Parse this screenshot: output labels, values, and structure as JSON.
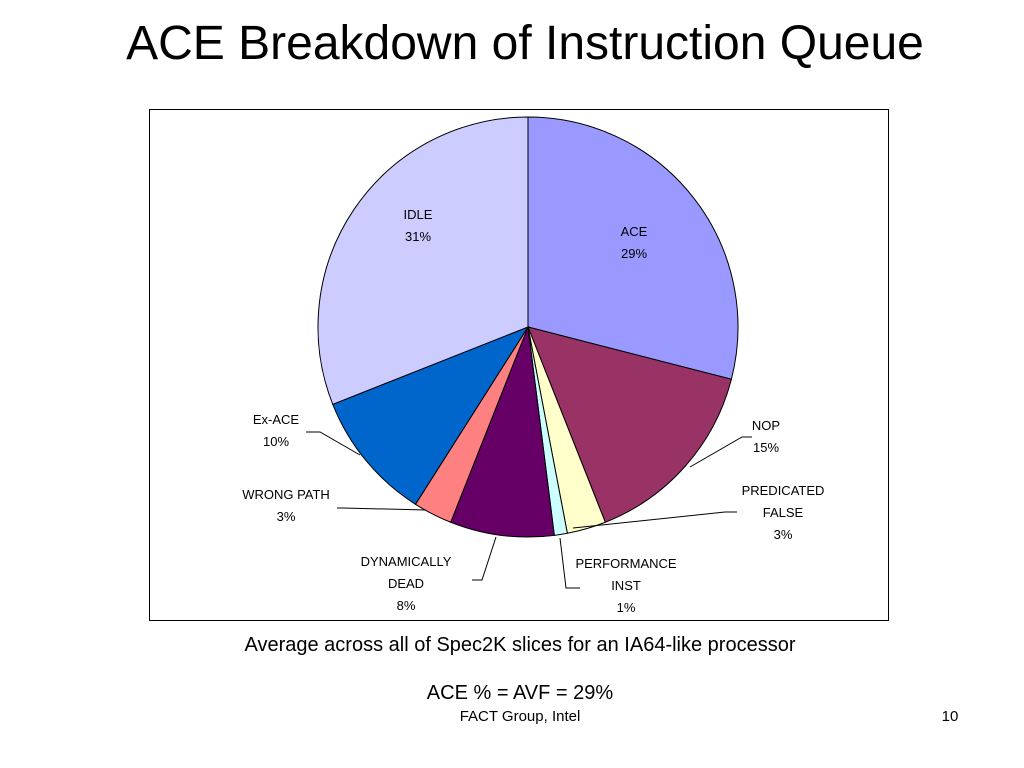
{
  "slide": {
    "title": "ACE Breakdown of Instruction Queue",
    "caption_line1": "Average across all of Spec2K slices for an IA64-like processor",
    "caption_line2": "ACE % = AVF = 29%",
    "footer_source": "FACT Group, Intel",
    "page_number": "10"
  },
  "chart_data": {
    "type": "pie",
    "title": "",
    "start_angle_deg": 0,
    "direction": "clockwise",
    "slices": [
      {
        "label_lines": [
          "ACE"
        ],
        "value": 29,
        "value_label": "29%",
        "color": "#9999FF"
      },
      {
        "label_lines": [
          "NOP"
        ],
        "value": 15,
        "value_label": "15%",
        "color": "#993366"
      },
      {
        "label_lines": [
          "PREDICATED",
          "FALSE"
        ],
        "value": 3,
        "value_label": "3%",
        "color": "#FFFFCC"
      },
      {
        "label_lines": [
          "PERFORMANCE",
          "INST"
        ],
        "value": 1,
        "value_label": "1%",
        "color": "#CCFFFF"
      },
      {
        "label_lines": [
          "DYNAMICALLY",
          "DEAD"
        ],
        "value": 8,
        "value_label": "8%",
        "color": "#660066"
      },
      {
        "label_lines": [
          "WRONG PATH"
        ],
        "value": 3,
        "value_label": "3%",
        "color": "#FF8080"
      },
      {
        "label_lines": [
          "Ex-ACE"
        ],
        "value": 10,
        "value_label": "10%",
        "color": "#0066CC"
      },
      {
        "label_lines": [
          "IDLE"
        ],
        "value": 31,
        "value_label": "31%",
        "color": "#CCCCFF"
      }
    ]
  }
}
